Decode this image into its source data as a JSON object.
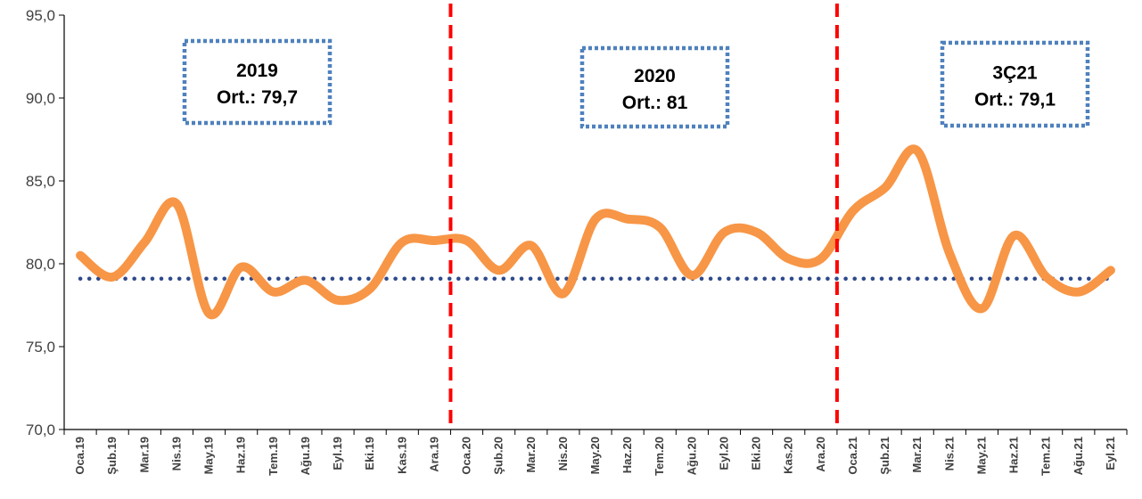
{
  "chart_data": {
    "type": "line",
    "categories": [
      "Oca.19",
      "Şub.19",
      "Mar.19",
      "Nis.19",
      "May.19",
      "Haz.19",
      "Tem.19",
      "Ağu.19",
      "Eyl.19",
      "Eki.19",
      "Kas.19",
      "Ara.19",
      "Oca.20",
      "Şub.20",
      "Mar.20",
      "Nis.20",
      "May.20",
      "Haz.20",
      "Tem.20",
      "Ağu.20",
      "Eyl.20",
      "Eki.20",
      "Kas.20",
      "Ara.20",
      "Oca.21",
      "Şub.21",
      "Mar.21",
      "Nis.21",
      "May.21",
      "Haz.21",
      "Tem.21",
      "Ağu.21",
      "Eyl.21"
    ],
    "series": [
      {
        "values": [
          80.5,
          79.2,
          81.3,
          83.6,
          77.0,
          79.8,
          78.3,
          79.0,
          77.8,
          78.5,
          81.3,
          81.4,
          81.4,
          79.6,
          81.1,
          78.2,
          82.7,
          82.7,
          82.2,
          79.3,
          81.9,
          81.9,
          80.3,
          80.3,
          83.2,
          84.6,
          86.8,
          80.6,
          77.3,
          81.7,
          79.2,
          78.3,
          79.6
        ],
        "color": "#f79646"
      }
    ],
    "reference_line": {
      "value": 79.1,
      "color": "#2e4a8b",
      "style": "dotted"
    },
    "period_dividers": [
      {
        "between": [
          "Ara.19",
          "Oca.20"
        ],
        "color": "#ff0000",
        "style": "dashed"
      },
      {
        "between": [
          "Ara.20",
          "Oca.21"
        ],
        "color": "#ff0000",
        "style": "dashed"
      }
    ],
    "annotations": [
      {
        "line1": "2019",
        "line2": "Ort.: 79,7"
      },
      {
        "line1": "2020",
        "line2": "Ort.: 81"
      },
      {
        "line1": "3Ç21",
        "line2": "Ort.: 79,1"
      }
    ],
    "annotation_border_color": "#4f81bd",
    "y_ticks": [
      "70,0",
      "75,0",
      "80,0",
      "85,0",
      "90,0",
      "95,0"
    ],
    "ylim": [
      70,
      95
    ],
    "grid": false,
    "legend": "none"
  }
}
